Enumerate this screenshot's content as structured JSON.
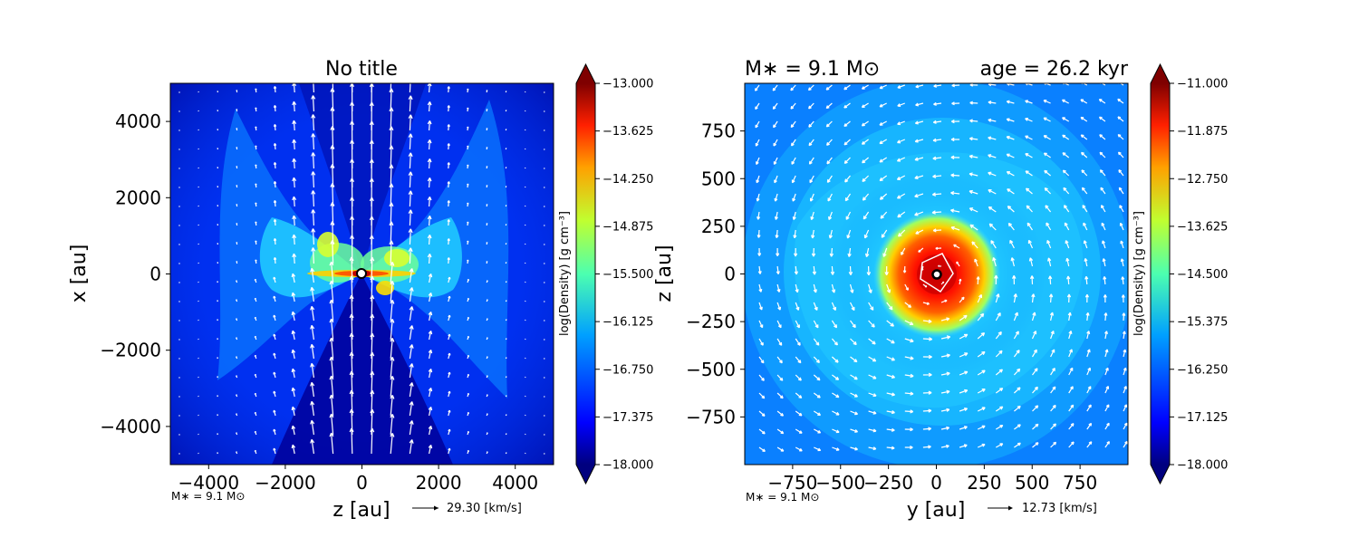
{
  "colors": {
    "jet": [
      "#00007f",
      "#0000d0",
      "#0020ff",
      "#0060ff",
      "#00a8ff",
      "#1ae4e6",
      "#4dffad",
      "#8aff6d",
      "#c6ff31",
      "#ffe500",
      "#ffa000",
      "#ff5a00",
      "#ff1800",
      "#c80000",
      "#7f0000"
    ],
    "arrows": "#ffffff",
    "background": "#ffffff"
  },
  "chart_data": [
    {
      "type": "heatmap",
      "title": "No title",
      "xlabel": "z [au]",
      "ylabel": "x [au]",
      "xlim": [
        -5000,
        5000
      ],
      "ylim": [
        -5000,
        5000
      ],
      "xticks": [
        "−4000",
        "−2000",
        "0",
        "2000",
        "4000"
      ],
      "xtick_values": [
        -4000,
        -2000,
        0,
        2000,
        4000
      ],
      "yticks": [
        "4000",
        "2000",
        "0",
        "−2000",
        "−4000"
      ],
      "ytick_values": [
        4000,
        2000,
        0,
        -2000,
        -4000
      ],
      "colorbar": {
        "label": "log(Density) [g cm⁻³]",
        "range": [
          -18.0,
          -13.0
        ],
        "ticks": [
          "−13.000",
          "−13.625",
          "−14.250",
          "−14.875",
          "−15.500",
          "−16.125",
          "−16.750",
          "−17.375",
          "−18.000"
        ],
        "tick_values": [
          -13.0,
          -13.625,
          -14.25,
          -14.875,
          -15.5,
          -16.125,
          -16.75,
          -17.375,
          -18.0
        ]
      },
      "annotations": {
        "mass": "M∗ = 9.1 M⊙",
        "velocity_key": "29.30 [km/s]"
      },
      "features": {
        "background_logrho": -17.4,
        "disk_logrho": -15.2,
        "outflow_cavity_logrho": -17.9,
        "velocity_field": "bipolar outflow along x"
      }
    },
    {
      "type": "heatmap",
      "title_left": "M∗ = 9.1 M⊙",
      "title_right": "age = 26.2 kyr",
      "xlabel": "y [au]",
      "ylabel": "z [au]",
      "xlim": [
        -1000,
        1000
      ],
      "ylim": [
        -1000,
        1000
      ],
      "xticks": [
        "−750",
        "−500",
        "−250",
        "0",
        "250",
        "500",
        "750"
      ],
      "xtick_values": [
        -750,
        -500,
        -250,
        0,
        250,
        500,
        750
      ],
      "yticks": [
        "750",
        "500",
        "250",
        "0",
        "−250",
        "−500",
        "−750"
      ],
      "ytick_values": [
        750,
        500,
        250,
        0,
        -250,
        -500,
        -750
      ],
      "colorbar": {
        "label": "log(Density) [g cm⁻³]",
        "range": [
          -18.0,
          -11.0
        ],
        "ticks": [
          "−11.000",
          "−11.875",
          "−12.750",
          "−13.625",
          "−14.500",
          "−15.375",
          "−16.250",
          "−17.125",
          "−18.000"
        ],
        "tick_values": [
          -11.0,
          -11.875,
          -12.75,
          -13.625,
          -14.5,
          -15.375,
          -16.25,
          -17.125,
          -18.0
        ]
      },
      "annotations": {
        "mass": "M∗ = 9.1 M⊙",
        "velocity_key": "12.73 [km/s]"
      },
      "features": {
        "background_logrho": -16.2,
        "core_logrho": -12.2,
        "velocity_field": "rotating disk"
      }
    }
  ]
}
